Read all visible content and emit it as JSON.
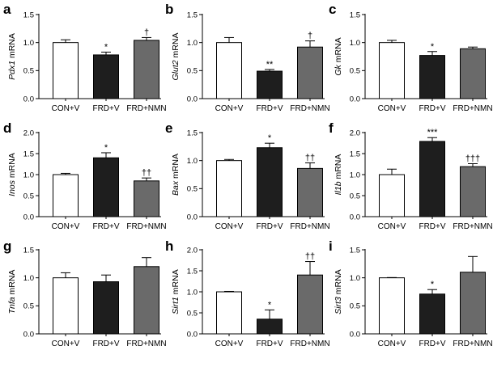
{
  "chart_data": [
    {
      "panel": "a",
      "type": "bar",
      "ylabel_italic": "Pdx1",
      "ylabel_rest": " mRNA",
      "categories": [
        "CON+V",
        "FRD+V",
        "FRD+NMN"
      ],
      "values": [
        1.0,
        0.78,
        1.04
      ],
      "errors": [
        0.05,
        0.05,
        0.05
      ],
      "ylim": [
        0,
        1.5
      ],
      "yticks": [
        "0.0",
        "0.5",
        "1.0",
        "1.5"
      ],
      "annotations": [
        "",
        "*",
        "†"
      ]
    },
    {
      "panel": "b",
      "type": "bar",
      "ylabel_italic": "Glut2",
      "ylabel_rest": " mRNA",
      "categories": [
        "CON+V",
        "FRD+V",
        "FRD+NMN"
      ],
      "values": [
        1.0,
        0.49,
        0.92
      ],
      "errors": [
        0.09,
        0.03,
        0.11
      ],
      "ylim": [
        0,
        1.5
      ],
      "yticks": [
        "0.0",
        "0.5",
        "1.0",
        "1.5"
      ],
      "annotations": [
        "",
        "**",
        "†"
      ]
    },
    {
      "panel": "c",
      "type": "bar",
      "ylabel_italic": "Gk",
      "ylabel_rest": " mRNA",
      "categories": [
        "CON+V",
        "FRD+V",
        "FRD+NMN"
      ],
      "values": [
        1.0,
        0.77,
        0.89
      ],
      "errors": [
        0.04,
        0.07,
        0.03
      ],
      "ylim": [
        0,
        1.5
      ],
      "yticks": [
        "0.0",
        "0.5",
        "1.0",
        "1.5"
      ],
      "annotations": [
        "",
        "*",
        ""
      ]
    },
    {
      "panel": "d",
      "type": "bar",
      "ylabel_italic": "Inos",
      "ylabel_rest": " mRNA",
      "categories": [
        "CON+V",
        "FRD+V",
        "FRD+NMN"
      ],
      "values": [
        1.0,
        1.4,
        0.85
      ],
      "errors": [
        0.03,
        0.12,
        0.07
      ],
      "ylim": [
        0,
        2.0
      ],
      "yticks": [
        "0.0",
        "0.5",
        "1.0",
        "1.5",
        "2.0"
      ],
      "annotations": [
        "",
        "*",
        "††"
      ]
    },
    {
      "panel": "e",
      "type": "bar",
      "ylabel_italic": "Bax",
      "ylabel_rest": " mRNA",
      "categories": [
        "CON+V",
        "FRD+V",
        "FRD+NMN"
      ],
      "values": [
        1.0,
        1.23,
        0.86
      ],
      "errors": [
        0.02,
        0.08,
        0.1
      ],
      "ylim": [
        0,
        1.5
      ],
      "yticks": [
        "0.0",
        "0.5",
        "1.0",
        "1.5"
      ],
      "annotations": [
        "",
        "*",
        "††"
      ]
    },
    {
      "panel": "f",
      "type": "bar",
      "ylabel_italic": "Il1b",
      "ylabel_rest": " mRNA",
      "categories": [
        "CON+V",
        "FRD+V",
        "FRD+NMN"
      ],
      "values": [
        1.0,
        1.79,
        1.19
      ],
      "errors": [
        0.13,
        0.09,
        0.07
      ],
      "ylim": [
        0,
        2.0
      ],
      "yticks": [
        "0.0",
        "0.5",
        "1.0",
        "1.5",
        "2.0"
      ],
      "annotations": [
        "",
        "***",
        "†††"
      ]
    },
    {
      "panel": "g",
      "type": "bar",
      "ylabel_italic": "Tnfa",
      "ylabel_rest": " mRNA",
      "categories": [
        "CON+V",
        "FRD+V",
        "FRD+NMN"
      ],
      "values": [
        1.0,
        0.93,
        1.2
      ],
      "errors": [
        0.09,
        0.12,
        0.16
      ],
      "ylim": [
        0,
        1.5
      ],
      "yticks": [
        "0.0",
        "0.5",
        "1.0",
        "1.5"
      ],
      "annotations": [
        "",
        "",
        ""
      ]
    },
    {
      "panel": "h",
      "type": "bar",
      "ylabel_italic": "Sirt1",
      "ylabel_rest": " mRNA",
      "categories": [
        "CON+V",
        "FRD+V",
        "FRD+NMN"
      ],
      "values": [
        1.0,
        0.35,
        1.4
      ],
      "errors": [
        0.01,
        0.22,
        0.32
      ],
      "ylim": [
        0,
        2.0
      ],
      "yticks": [
        "0.0",
        "0.5",
        "1.0",
        "1.5",
        "2.0"
      ],
      "annotations": [
        "",
        "*",
        "††"
      ]
    },
    {
      "panel": "i",
      "type": "bar",
      "ylabel_italic": "Sirt3",
      "ylabel_rest": " mRNA",
      "categories": [
        "CON+V",
        "FRD+V",
        "FRD+NMN"
      ],
      "values": [
        1.0,
        0.71,
        1.1
      ],
      "errors": [
        0.005,
        0.08,
        0.28
      ],
      "ylim": [
        0,
        1.5
      ],
      "yticks": [
        "0.0",
        "0.5",
        "1.0",
        "1.5"
      ],
      "annotations": [
        "",
        "*",
        ""
      ]
    }
  ],
  "colors": {
    "con_fill": "#ffffff",
    "frd_v_fill": "#1e1e1e",
    "frd_nmn_fill": "#6a6a6a",
    "stroke": "#000000"
  }
}
